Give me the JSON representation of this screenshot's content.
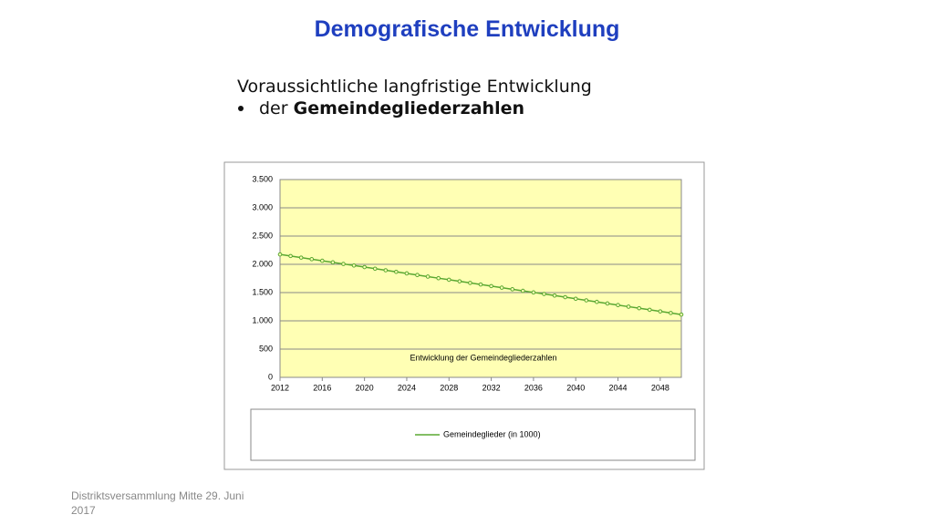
{
  "header": {
    "title": "Demografische Entwicklung",
    "subtitle": "Voraussichtliche langfristige Entwicklung",
    "bullet_prefix": "der",
    "bullet_bold": "Gemeindegliederzahlen"
  },
  "footer": {
    "lines": [
      "Distriktsversammlung Mitte 29. Juni",
      "2017"
    ]
  },
  "chart_data": {
    "type": "line",
    "annotation": "Entwicklung  der Gemeindegliederzahlen",
    "x": [
      2012,
      2013,
      2014,
      2015,
      2016,
      2017,
      2018,
      2019,
      2020,
      2021,
      2022,
      2023,
      2024,
      2025,
      2026,
      2027,
      2028,
      2029,
      2030,
      2031,
      2032,
      2033,
      2034,
      2035,
      2036,
      2037,
      2038,
      2039,
      2040,
      2041,
      2042,
      2043,
      2044,
      2045,
      2046,
      2047,
      2048,
      2049,
      2050
    ],
    "series": [
      {
        "name": "Gemeindeglieder (in 1000)",
        "color": "#5aa832",
        "values": [
          2175,
          2147,
          2119,
          2091,
          2063,
          2035,
          2007,
          1979,
          1951,
          1923,
          1895,
          1867,
          1839,
          1811,
          1783,
          1755,
          1727,
          1699,
          1671,
          1643,
          1615,
          1587,
          1559,
          1531,
          1503,
          1475,
          1447,
          1419,
          1391,
          1363,
          1335,
          1307,
          1279,
          1251,
          1223,
          1195,
          1167,
          1139,
          1111
        ]
      }
    ],
    "xlim": [
      2012,
      2050
    ],
    "xticks": [
      2012,
      2016,
      2020,
      2024,
      2028,
      2032,
      2036,
      2040,
      2044,
      2048
    ],
    "ylim": [
      0,
      3500
    ],
    "yticks": [
      0,
      500,
      {
        "value": 1000,
        "label": "1.000"
      },
      {
        "value": 1500,
        "label": "1.500"
      },
      {
        "value": 2000,
        "label": "2.000"
      },
      {
        "value": 2500,
        "label": "2.500"
      },
      {
        "value": 3000,
        "label": "3.000"
      },
      {
        "value": 3500,
        "label": "3.500"
      }
    ],
    "grid": true,
    "legend": "bottom"
  }
}
